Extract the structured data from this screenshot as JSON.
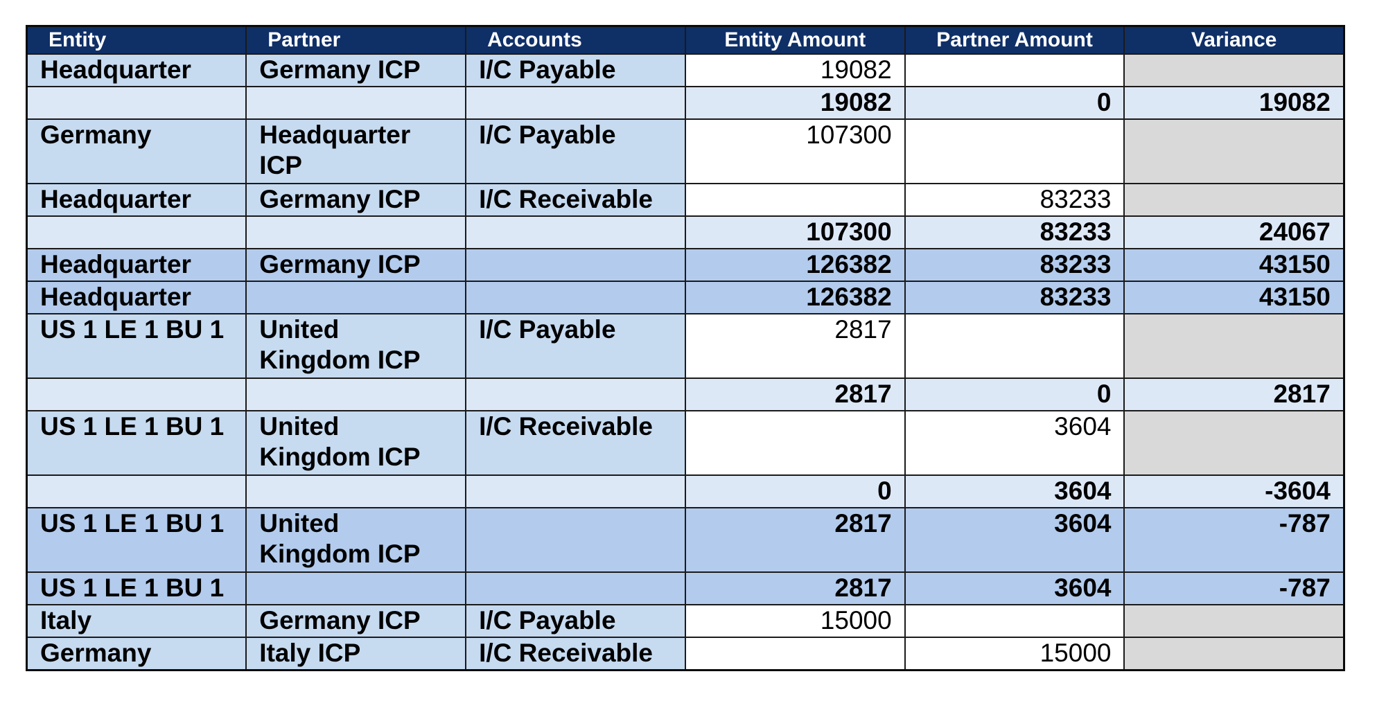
{
  "headers": {
    "entity": "Entity",
    "partner": "Partner",
    "accounts": "Accounts",
    "entity_amount": "Entity Amount",
    "partner_amount": "Partner Amount",
    "variance": "Variance"
  },
  "rows": [
    {
      "entity": "Headquarter",
      "partner": "Germany ICP",
      "accounts": "I/C Payable",
      "entity_amount": "19082",
      "partner_amount": "",
      "variance": ""
    },
    {
      "entity": "",
      "partner": "",
      "accounts": "",
      "entity_amount": "19082",
      "partner_amount": "0",
      "variance": "19082"
    },
    {
      "entity": "Germany",
      "partner": "Headquarter ICP",
      "accounts": "I/C Payable",
      "entity_amount": "107300",
      "partner_amount": "",
      "variance": ""
    },
    {
      "entity": "Headquarter",
      "partner": "Germany ICP",
      "accounts": "I/C Receivable",
      "entity_amount": "",
      "partner_amount": "83233",
      "variance": ""
    },
    {
      "entity": "",
      "partner": "",
      "accounts": "",
      "entity_amount": "107300",
      "partner_amount": "83233",
      "variance": "24067"
    },
    {
      "entity": "Headquarter",
      "partner": "Germany ICP",
      "accounts": "",
      "entity_amount": "126382",
      "partner_amount": "83233",
      "variance": "43150"
    },
    {
      "entity": "Headquarter",
      "partner": "",
      "accounts": "",
      "entity_amount": "126382",
      "partner_amount": "83233",
      "variance": "43150"
    },
    {
      "entity": "US 1 LE 1 BU 1",
      "partner": "United Kingdom ICP",
      "accounts": "I/C Payable",
      "entity_amount": "2817",
      "partner_amount": "",
      "variance": ""
    },
    {
      "entity": "",
      "partner": "",
      "accounts": "",
      "entity_amount": "2817",
      "partner_amount": "0",
      "variance": "2817"
    },
    {
      "entity": "US 1 LE 1 BU 1",
      "partner": "United Kingdom ICP",
      "accounts": "I/C Receivable",
      "entity_amount": "",
      "partner_amount": "3604",
      "variance": ""
    },
    {
      "entity": "",
      "partner": "",
      "accounts": "",
      "entity_amount": "0",
      "partner_amount": "3604",
      "variance": "-3604"
    },
    {
      "entity": "US 1 LE 1 BU 1",
      "partner": "United Kingdom ICP",
      "accounts": "",
      "entity_amount": "2817",
      "partner_amount": "3604",
      "variance": "-787"
    },
    {
      "entity": "US 1 LE 1 BU 1",
      "partner": "",
      "accounts": "",
      "entity_amount": "2817",
      "partner_amount": "3604",
      "variance": "-787"
    },
    {
      "entity": "Italy",
      "partner": "Germany ICP",
      "accounts": "I/C Payable",
      "entity_amount": "15000",
      "partner_amount": "",
      "variance": ""
    },
    {
      "entity": "Germany",
      "partner": "Italy ICP",
      "accounts": "I/C Receivable",
      "entity_amount": "",
      "partner_amount": "15000",
      "variance": ""
    }
  ]
}
